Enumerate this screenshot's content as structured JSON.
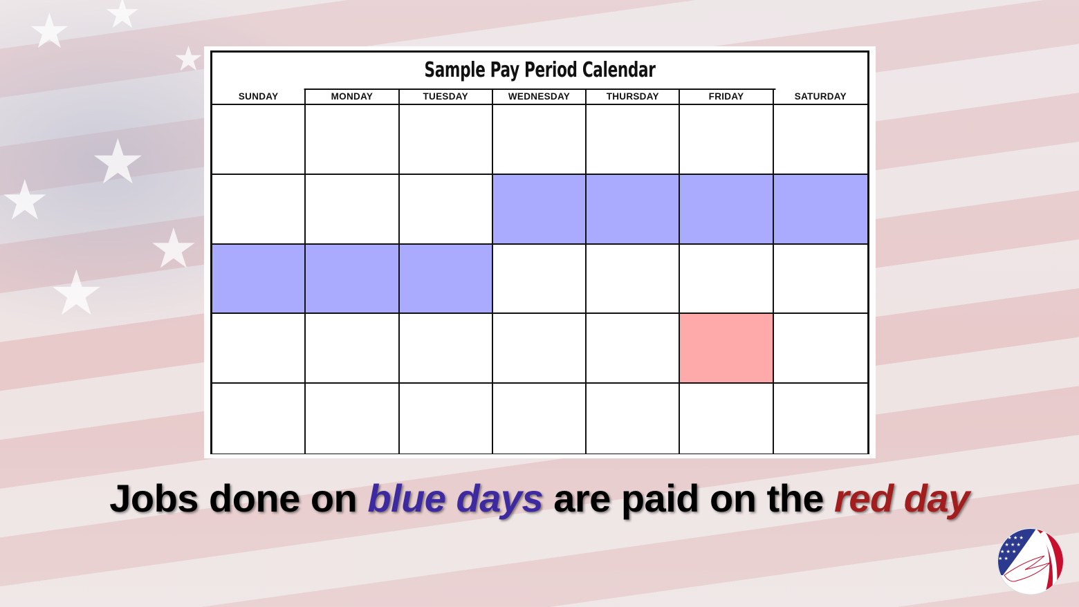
{
  "calendar": {
    "title": "Sample Pay Period Calendar",
    "days": [
      "SUNDAY",
      "MONDAY",
      "TUESDAY",
      "WEDNESDAY",
      "THURSDAY",
      "FRIDAY",
      "SATURDAY"
    ],
    "rows": 5,
    "highlights": [
      {
        "week": 1,
        "day": 3,
        "color": "blue"
      },
      {
        "week": 1,
        "day": 4,
        "color": "blue"
      },
      {
        "week": 1,
        "day": 5,
        "color": "blue"
      },
      {
        "week": 1,
        "day": 6,
        "color": "blue"
      },
      {
        "week": 2,
        "day": 0,
        "color": "blue"
      },
      {
        "week": 2,
        "day": 1,
        "color": "blue"
      },
      {
        "week": 2,
        "day": 2,
        "color": "blue"
      },
      {
        "week": 3,
        "day": 5,
        "color": "red"
      }
    ]
  },
  "caption": {
    "part1": "Jobs done on ",
    "blue_phrase": "blue days",
    "part2": " are paid on the ",
    "red_phrase": "red day"
  },
  "colors": {
    "blue_day": "#aaaaff",
    "red_day": "#ffaaaa",
    "blue_text": "#3d2aa0",
    "red_text": "#a21d1d"
  },
  "logo": {
    "icon": "flag-eagle-logo-icon"
  }
}
